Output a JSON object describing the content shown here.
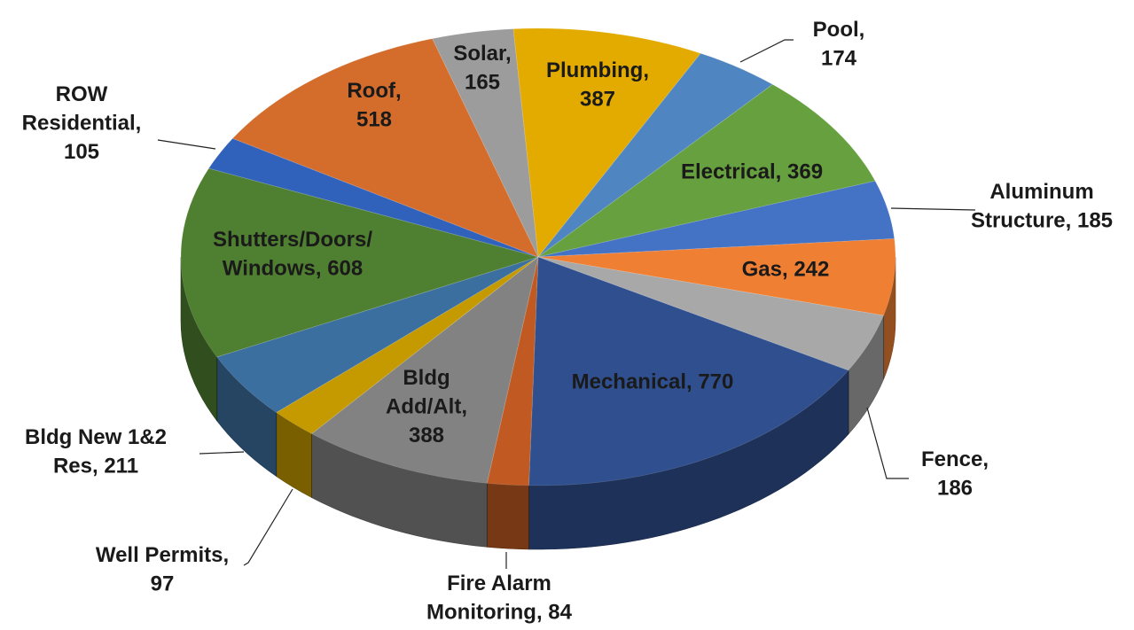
{
  "chart_data": {
    "type": "pie3d",
    "values": [
      387,
      174,
      369,
      185,
      242,
      186,
      770,
      84,
      388,
      97,
      211,
      608,
      105,
      518,
      165
    ],
    "value_labels": [
      [
        "Plumbing,",
        "387"
      ],
      [
        "Pool,",
        "174"
      ],
      [
        "Electrical, 369"
      ],
      [
        "Aluminum",
        "Structure, 185"
      ],
      [
        "Gas, 242"
      ],
      [
        "Fence,",
        "186"
      ],
      [
        "Mechanical, 770"
      ],
      [
        "Fire Alarm",
        "Monitoring, 84"
      ],
      [
        "Bldg",
        "Add/Alt,",
        "388"
      ],
      [
        "Well Permits,",
        "97"
      ],
      [
        "Bldg New 1&2",
        "Res, 211"
      ],
      [
        "Shutters/Doors/",
        "Windows, 608"
      ],
      [
        "ROW",
        "Residential,",
        "105"
      ],
      [
        "Roof,",
        "518"
      ],
      [
        "Solar,",
        "165"
      ]
    ],
    "colors": [
      "#e3ab00",
      "#4f86c2",
      "#67a03f",
      "#4472c4",
      "#ef7f33",
      "#a8a8a8",
      "#2f4f8f",
      "#c05a22",
      "#828282",
      "#c49a00",
      "#3b6fa0",
      "#4f7f30",
      "#3062bc",
      "#d46d2c",
      "#9c9c9c"
    ]
  }
}
